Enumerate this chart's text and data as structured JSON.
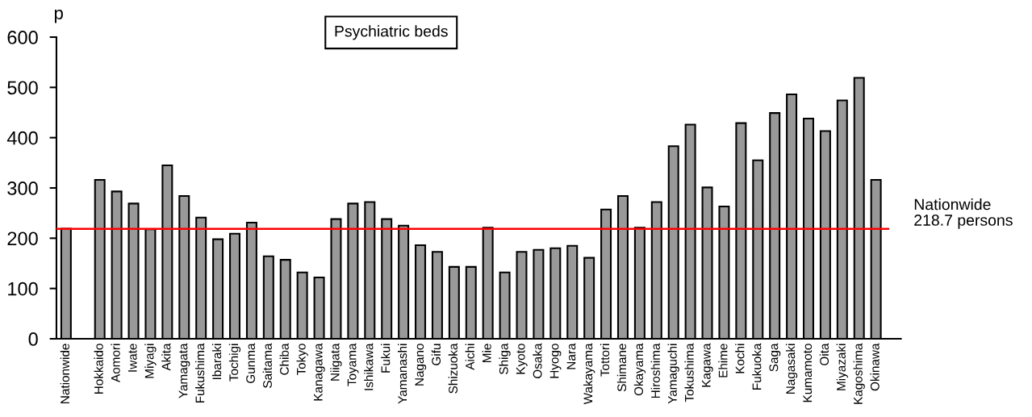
{
  "chart_data": {
    "type": "bar",
    "title": "Psychiatric beds",
    "ylabel": "p",
    "categories": [
      "Nationwide",
      null,
      "Hokkaido",
      "Aomori",
      "Iwate",
      "Miyagi",
      "Akita",
      "Yamagata",
      "Fukushima",
      "Ibaraki",
      "Tochigi",
      "Gunma",
      "Saitama",
      "Chiba",
      "Tokyo",
      "Kanagawa",
      "Niigata",
      "Toyama",
      "Ishikawa",
      "Fukui",
      "Yamanashi",
      "Nagano",
      "Gifu",
      "Shizuoka",
      "Aichi",
      "Mie",
      "Shiga",
      "Kyoto",
      "Osaka",
      "Hyogo",
      "Nara",
      "Wakayama",
      "Tottori",
      "Shimane",
      "Okayama",
      "Hiroshima",
      "Yamaguchi",
      "Tokushima",
      "Kagawa",
      "Ehime",
      "Kochi",
      "Fukuoka",
      "Saga",
      "Nagasaki",
      "Kumamoto",
      "Oita",
      "Miyazaki",
      "Kagoshima",
      "Okinawa"
    ],
    "values": [
      219,
      null,
      316,
      293,
      269,
      218,
      345,
      284,
      241,
      198,
      209,
      231,
      164,
      157,
      132,
      122,
      238,
      269,
      272,
      238,
      225,
      186,
      173,
      143,
      143,
      221,
      132,
      173,
      177,
      180,
      185,
      161,
      257,
      284,
      221,
      272,
      383,
      426,
      301,
      263,
      429,
      355,
      449,
      486,
      438,
      413,
      474,
      519,
      316
    ],
    "color": "#999999",
    "ylim": [
      0,
      600
    ],
    "yticks": [
      0,
      100,
      200,
      300,
      400,
      500,
      600
    ],
    "ref_lines": [
      {
        "axis": "y",
        "value": 218.7,
        "label": "Nationwide\n218.7 persons",
        "color": "#ff0000"
      }
    ],
    "grid": false
  }
}
